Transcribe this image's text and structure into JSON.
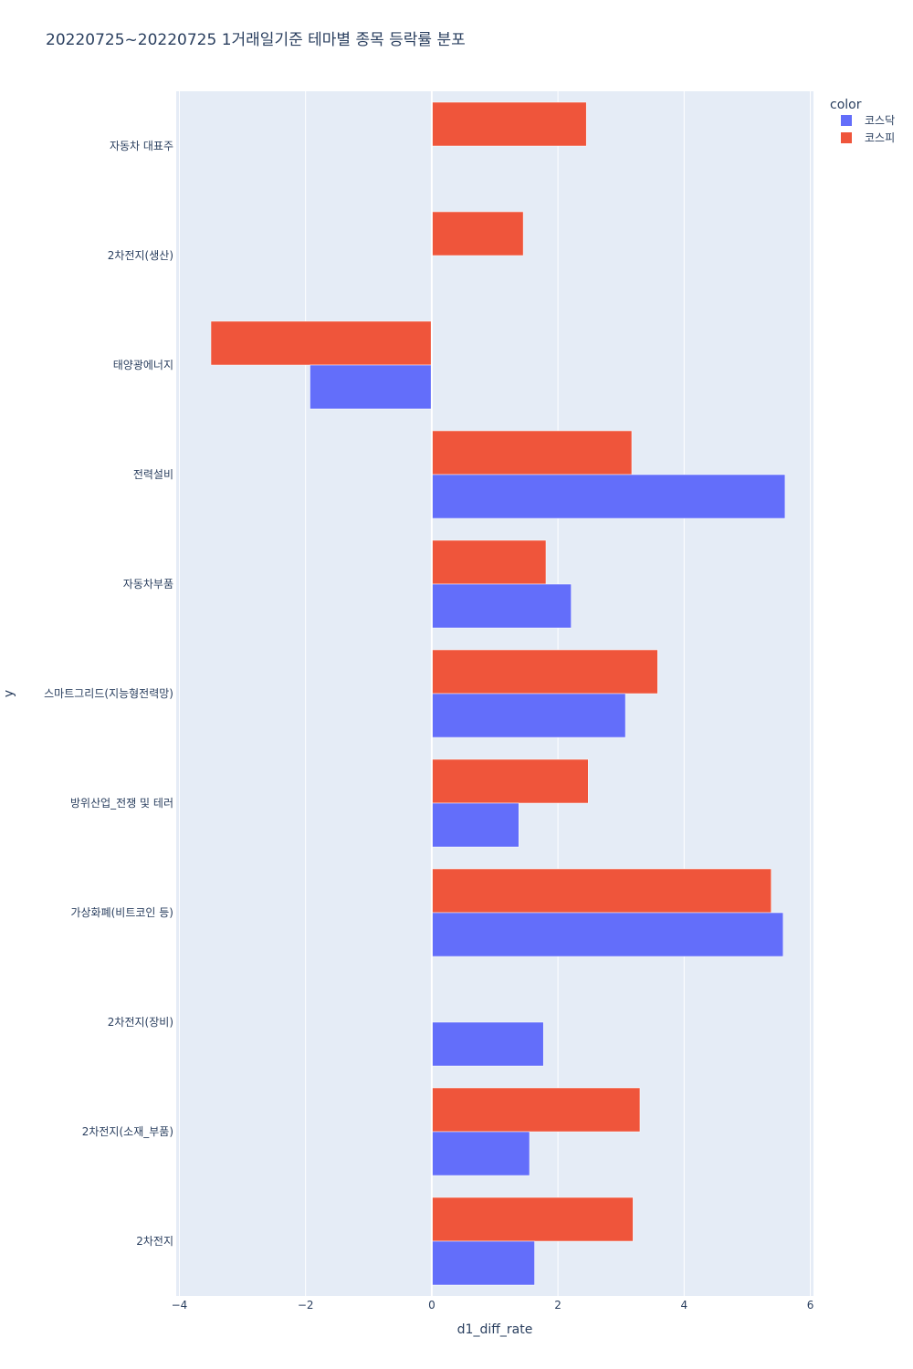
{
  "chart_data": {
    "type": "bar",
    "orientation": "horizontal",
    "barmode": "group",
    "title": "20220725~20220725 1거래일기준 테마별 종목 등락률 분포",
    "xlabel": "d1_diff_rate",
    "ylabel": "y",
    "xlim": [
      -4.05,
      6.05
    ],
    "xticks": [
      -4,
      -2,
      0,
      2,
      4,
      6
    ],
    "xtick_labels": [
      "−4",
      "−2",
      "0",
      "2",
      "4",
      "6"
    ],
    "grid": true,
    "legend": {
      "title": "color",
      "position": "top-right",
      "entries": [
        "코스닥",
        "코스피"
      ]
    },
    "categories": [
      "자동차 대표주",
      "2차전지(생산)",
      "태양광에너지",
      "전력설비",
      "자동차부품",
      "스마트그리드(지능형전력망)",
      "방위산업_전쟁 및 테러",
      "가상화폐(비트코인 등)",
      "2차전지(장비)",
      "2차전지(소재_부품)",
      "2차전지"
    ],
    "series": [
      {
        "name": "코스닥",
        "color": "#636efa",
        "values": [
          null,
          null,
          -1.93,
          5.6,
          2.21,
          3.07,
          1.38,
          5.57,
          1.77,
          1.55,
          1.63
        ]
      },
      {
        "name": "코스피",
        "color": "#ef553b",
        "values": [
          2.45,
          1.45,
          -3.5,
          3.17,
          1.81,
          3.58,
          2.48,
          5.38,
          null,
          3.3,
          3.19
        ]
      }
    ]
  }
}
